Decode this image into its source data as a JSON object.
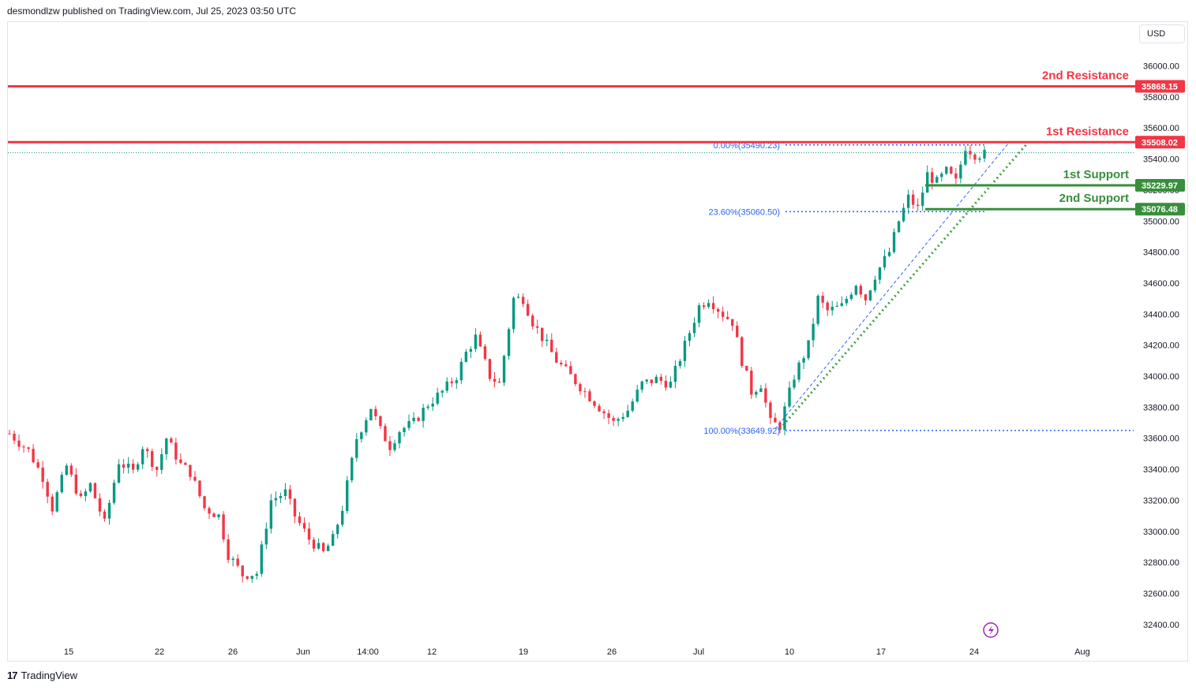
{
  "header": {
    "publisher": "desmondlzw published on TradingView.com, Jul 25, 2023 03:50 UTC"
  },
  "currency_button": "USD",
  "footer": {
    "brand": "TradingView",
    "logo": "17"
  },
  "icons": {
    "lightning": "lightning-icon"
  },
  "colors": {
    "up": "#089981",
    "down": "#f23645",
    "resistance": "#f23645",
    "support": "#388e3c",
    "fib": "#2962ff",
    "trend": "#43a047"
  },
  "chart_data": {
    "type": "candlestick",
    "ylim": [
      32300,
      36300
    ],
    "y_ticks": [
      "36000.00",
      "35800.00",
      "35600.00",
      "35400.00",
      "35200.00",
      "35000.00",
      "34800.00",
      "34600.00",
      "34400.00",
      "34200.00",
      "34000.00",
      "33800.00",
      "33600.00",
      "33400.00",
      "33200.00",
      "33000.00",
      "32800.00",
      "32600.00",
      "32400.00"
    ],
    "x_ticks": [
      "15",
      "22",
      "26",
      "Jun",
      "14:00",
      "12",
      "19",
      "26",
      "Jul",
      "10",
      "17",
      "24",
      "Aug"
    ],
    "levels": [
      {
        "name": "2nd Resistance",
        "value": 35868.15,
        "label": "35868.15",
        "kind": "resistance"
      },
      {
        "name": "1st Resistance",
        "value": 35508.02,
        "label": "35508.02",
        "kind": "resistance"
      },
      {
        "name": "1st Support",
        "value": 35229.97,
        "label": "35229.97",
        "kind": "support"
      },
      {
        "name": "2nd Support",
        "value": 35076.48,
        "label": "35076.48",
        "kind": "support"
      }
    ],
    "fib": [
      {
        "label": "0.00%(35490.23)",
        "value": 35490.23
      },
      {
        "label": "23.60%(35060.50)",
        "value": 35060.5
      },
      {
        "label": "100.00%(33649.92)",
        "value": 33649.92
      }
    ],
    "path": [
      [
        0,
        33630
      ],
      [
        4,
        33520
      ],
      [
        7,
        33350
      ],
      [
        9,
        33150
      ],
      [
        12,
        33420
      ],
      [
        15,
        33200
      ],
      [
        17,
        33300
      ],
      [
        20,
        33050
      ],
      [
        23,
        33450
      ],
      [
        26,
        33380
      ],
      [
        28,
        33550
      ],
      [
        31,
        33400
      ],
      [
        33,
        33600
      ],
      [
        36,
        33430
      ],
      [
        38,
        33380
      ],
      [
        41,
        33150
      ],
      [
        44,
        33100
      ],
      [
        46,
        32850
      ],
      [
        49,
        32720
      ],
      [
        52,
        32730
      ],
      [
        55,
        33200
      ],
      [
        58,
        33250
      ],
      [
        60,
        33100
      ],
      [
        63,
        32950
      ],
      [
        66,
        32860
      ],
      [
        68,
        32950
      ],
      [
        70,
        33150
      ],
      [
        73,
        33600
      ],
      [
        76,
        33800
      ],
      [
        78,
        33650
      ],
      [
        80,
        33550
      ],
      [
        82,
        33650
      ],
      [
        85,
        33700
      ],
      [
        88,
        33820
      ],
      [
        91,
        33900
      ],
      [
        94,
        34000
      ],
      [
        96,
        34150
      ],
      [
        98,
        34250
      ],
      [
        101,
        34000
      ],
      [
        103,
        33950
      ],
      [
        106,
        34500
      ],
      [
        108,
        34500
      ],
      [
        110,
        34350
      ],
      [
        112,
        34250
      ],
      [
        115,
        34100
      ],
      [
        118,
        34000
      ],
      [
        121,
        33900
      ],
      [
        124,
        33800
      ],
      [
        127,
        33700
      ],
      [
        130,
        33780
      ],
      [
        133,
        33950
      ],
      [
        136,
        33980
      ],
      [
        139,
        33950
      ],
      [
        142,
        34200
      ],
      [
        145,
        34450
      ],
      [
        147,
        34500
      ],
      [
        150,
        34400
      ],
      [
        152,
        34350
      ],
      [
        154,
        34100
      ],
      [
        156,
        33900
      ],
      [
        158,
        33950
      ],
      [
        160,
        33700
      ],
      [
        162,
        33680
      ],
      [
        165,
        34000
      ],
      [
        168,
        34200
      ],
      [
        170,
        34500
      ],
      [
        172,
        34420
      ],
      [
        175,
        34450
      ],
      [
        178,
        34600
      ],
      [
        180,
        34500
      ],
      [
        182,
        34650
      ],
      [
        185,
        34800
      ],
      [
        187,
        35000
      ],
      [
        189,
        35150
      ],
      [
        191,
        35080
      ],
      [
        193,
        35300
      ],
      [
        195,
        35250
      ],
      [
        197,
        35320
      ],
      [
        199,
        35250
      ],
      [
        201,
        35480
      ],
      [
        203,
        35430
      ]
    ],
    "trend_start": [
      161,
      33660
    ],
    "trend_end": [
      210,
      35500
    ]
  }
}
